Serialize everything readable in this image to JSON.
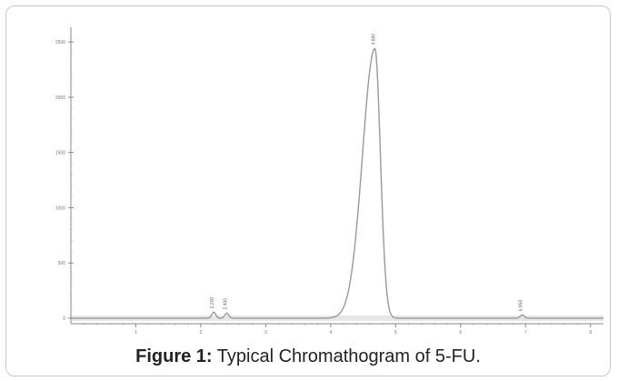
{
  "figure": {
    "caption_label": "Figure 1:",
    "caption_text": " Typical Chromathogram of 5-FU."
  },
  "chart_data": {
    "type": "line",
    "title": "",
    "xlabel": "",
    "ylabel": "",
    "xlim": [
      0,
      8.2
    ],
    "ylim": [
      -50,
      2600
    ],
    "x_ticks": [
      1,
      2,
      3,
      4,
      5,
      6,
      7,
      8
    ],
    "x_tick_labels": [
      "1",
      "2",
      "3",
      "4",
      "5",
      "6",
      "7",
      "8"
    ],
    "y_ticks": [
      0,
      500,
      1000,
      1500,
      2000,
      2500
    ],
    "y_tick_labels": [
      "0",
      "500",
      "1000",
      "1500",
      "2000",
      "2500"
    ],
    "grid": false,
    "line_color": "#999999",
    "baseline_band_color": "#e0e0e0",
    "peaks": [
      {
        "x": 2.2,
        "height": 55,
        "width": 0.03,
        "label": "2.200"
      },
      {
        "x": 2.4,
        "height": 45,
        "width": 0.03,
        "label": "2.400"
      },
      {
        "x": 4.68,
        "height": 2440,
        "width": 0.19,
        "label": "4.680"
      },
      {
        "x": 6.95,
        "height": 30,
        "width": 0.03,
        "label": "6.950"
      }
    ],
    "series": [
      {
        "x": [
          0,
          0.5,
          1.0,
          1.5,
          2.0,
          2.15,
          2.2,
          2.25,
          2.35,
          2.4,
          2.45,
          2.6,
          3.0,
          3.5,
          3.8,
          4.0,
          4.1,
          4.2,
          4.3,
          4.4,
          4.5,
          4.6,
          4.68,
          4.75,
          4.8,
          4.85,
          4.9,
          5.0,
          5.1,
          5.2,
          5.4,
          5.6,
          6.0,
          6.5,
          6.9,
          6.95,
          7.0,
          7.5,
          8.0,
          8.2
        ],
        "y": [
          0,
          0,
          0,
          0,
          2,
          15,
          55,
          15,
          12,
          45,
          12,
          3,
          0,
          0,
          5,
          40,
          120,
          330,
          700,
          1250,
          1800,
          2250,
          2440,
          2300,
          1700,
          800,
          300,
          100,
          55,
          35,
          20,
          12,
          5,
          2,
          10,
          30,
          10,
          0,
          0,
          0
        ]
      }
    ]
  }
}
